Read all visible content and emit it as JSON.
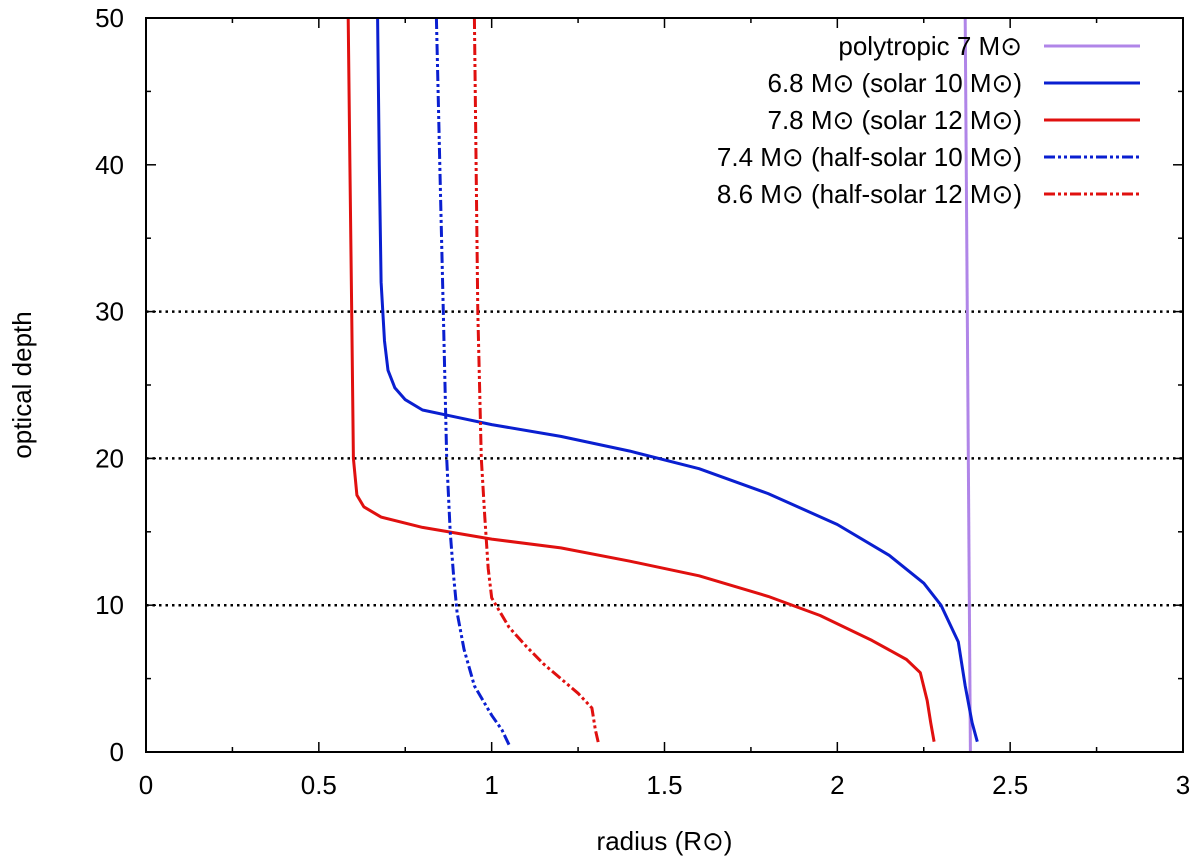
{
  "chart_data": {
    "type": "line",
    "title": "",
    "xlabel": "radius (R⊙)",
    "ylabel": "optical depth",
    "xlim": [
      0,
      3
    ],
    "ylim": [
      0,
      50
    ],
    "x_ticks": [
      {
        "value": 0,
        "label": "0"
      },
      {
        "value": 0.5,
        "label": "0.5"
      },
      {
        "value": 1,
        "label": "1"
      },
      {
        "value": 1.5,
        "label": "1.5"
      },
      {
        "value": 2,
        "label": "2"
      },
      {
        "value": 2.5,
        "label": "2.5"
      },
      {
        "value": 3,
        "label": "3"
      }
    ],
    "y_ticks": [
      {
        "value": 0,
        "label": "0"
      },
      {
        "value": 10,
        "label": "10"
      },
      {
        "value": 20,
        "label": "20"
      },
      {
        "value": 30,
        "label": "30"
      },
      {
        "value": 40,
        "label": "40"
      },
      {
        "value": 50,
        "label": "50"
      }
    ],
    "x_minor_step": 0.25,
    "y_minor_step": 5,
    "reference_lines": [
      10,
      20,
      30
    ],
    "legend_position": "top-right",
    "series": [
      {
        "name": "polytropic 7 M⊙",
        "color": "#b085e8",
        "dash": "solid",
        "points": [
          [
            2.37,
            50
          ],
          [
            2.385,
            0
          ]
        ]
      },
      {
        "name": "6.8 M⊙ (solar 10 M⊙)",
        "color": "#0a1fd0",
        "dash": "solid",
        "points": [
          [
            0.67,
            50
          ],
          [
            0.675,
            40
          ],
          [
            0.68,
            32
          ],
          [
            0.69,
            28
          ],
          [
            0.7,
            26
          ],
          [
            0.72,
            24.8
          ],
          [
            0.75,
            24
          ],
          [
            0.8,
            23.3
          ],
          [
            0.9,
            22.8
          ],
          [
            1.0,
            22.3
          ],
          [
            1.2,
            21.5
          ],
          [
            1.4,
            20.5
          ],
          [
            1.6,
            19.3
          ],
          [
            1.8,
            17.6
          ],
          [
            2.0,
            15.5
          ],
          [
            2.15,
            13.4
          ],
          [
            2.25,
            11.5
          ],
          [
            2.3,
            10.0
          ],
          [
            2.35,
            7.5
          ],
          [
            2.37,
            4.5
          ],
          [
            2.39,
            2.0
          ],
          [
            2.405,
            0.7
          ]
        ]
      },
      {
        "name": "7.8 M⊙ (solar 12 M⊙)",
        "color": "#e0100f",
        "dash": "solid",
        "points": [
          [
            0.585,
            50
          ],
          [
            0.59,
            40
          ],
          [
            0.595,
            30
          ],
          [
            0.6,
            20
          ],
          [
            0.61,
            17.5
          ],
          [
            0.63,
            16.7
          ],
          [
            0.68,
            16.0
          ],
          [
            0.8,
            15.3
          ],
          [
            1.0,
            14.5
          ],
          [
            1.2,
            13.9
          ],
          [
            1.4,
            13.0
          ],
          [
            1.6,
            12.0
          ],
          [
            1.8,
            10.6
          ],
          [
            1.95,
            9.3
          ],
          [
            2.1,
            7.6
          ],
          [
            2.2,
            6.3
          ],
          [
            2.24,
            5.4
          ],
          [
            2.26,
            3.5
          ],
          [
            2.27,
            2.0
          ],
          [
            2.28,
            0.7
          ]
        ]
      },
      {
        "name": "7.4 M⊙ (half-solar 10 M⊙)",
        "color": "#0a1fd0",
        "dash": "dash-dot",
        "points": [
          [
            0.84,
            50
          ],
          [
            0.85,
            40
          ],
          [
            0.86,
            30
          ],
          [
            0.87,
            20
          ],
          [
            0.88,
            15
          ],
          [
            0.89,
            12
          ],
          [
            0.9,
            9.5
          ],
          [
            0.92,
            7.0
          ],
          [
            0.95,
            4.5
          ],
          [
            1.0,
            2.5
          ],
          [
            1.03,
            1.5
          ],
          [
            1.05,
            0.5
          ]
        ]
      },
      {
        "name": "8.6 M⊙ (half-solar 12 M⊙)",
        "color": "#e0100f",
        "dash": "dash-dot",
        "points": [
          [
            0.95,
            50
          ],
          [
            0.955,
            40
          ],
          [
            0.96,
            30
          ],
          [
            0.97,
            20
          ],
          [
            0.98,
            16
          ],
          [
            0.99,
            12.5
          ],
          [
            1.0,
            10.5
          ],
          [
            1.05,
            8.5
          ],
          [
            1.1,
            7.2
          ],
          [
            1.15,
            6.0
          ],
          [
            1.2,
            5.0
          ],
          [
            1.25,
            4.0
          ],
          [
            1.29,
            3.0
          ],
          [
            1.3,
            1.5
          ],
          [
            1.31,
            0.5
          ]
        ]
      }
    ]
  }
}
